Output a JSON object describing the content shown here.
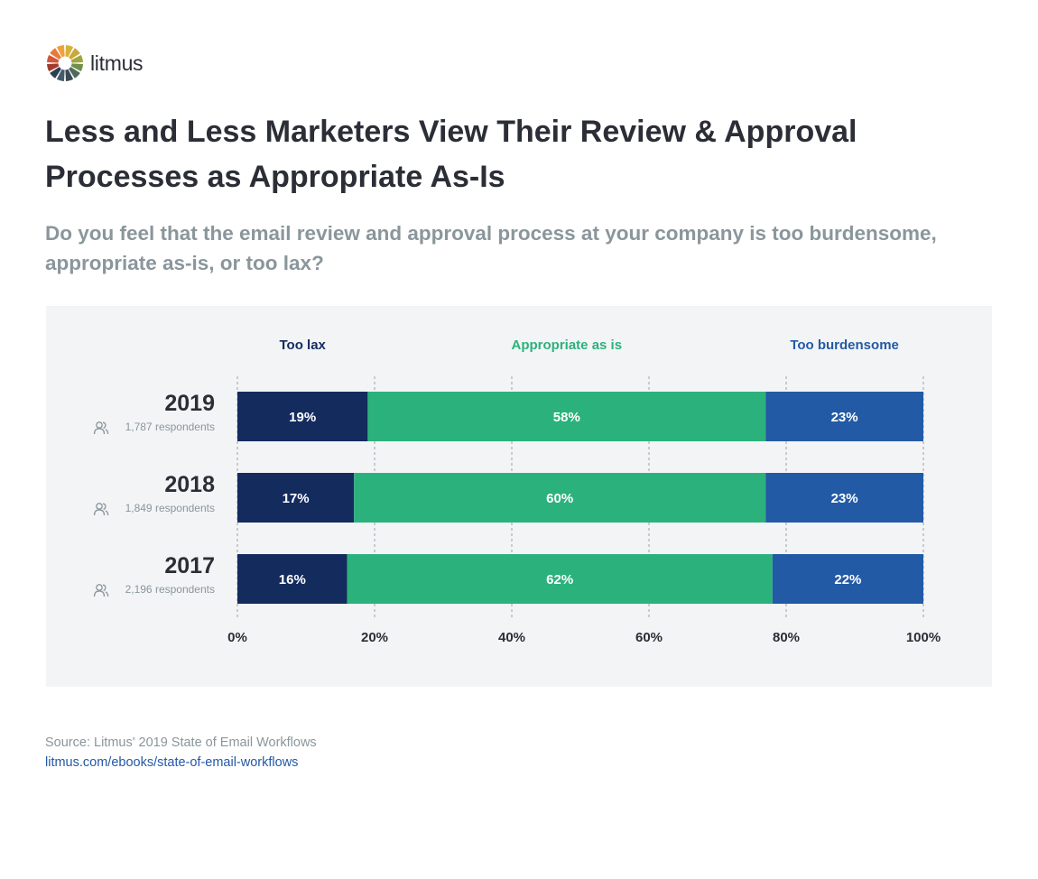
{
  "brand": {
    "name": "litmus",
    "logo_icon": "litmus-wheel-logo",
    "logo_colors": [
      "#d7b23a",
      "#c9a93c",
      "#9fa63e",
      "#6f8f4c",
      "#4e6b5c",
      "#3a4a54",
      "#455b6c",
      "#2c3e50",
      "#a33a2e",
      "#d1573a",
      "#e9793b",
      "#f0a13b"
    ]
  },
  "header": {
    "title": "Less and Less Marketers View Their Review & Approval Processes as Appropriate As-Is",
    "subtitle": "Do you feel that the email review and approval process at your company is too burdensome, appropriate as-is, or too lax?"
  },
  "chart_data": {
    "type": "bar",
    "orientation": "horizontal",
    "stacked": true,
    "categories": [
      "2019",
      "2018",
      "2017"
    ],
    "respondents": [
      "1,787 respondents",
      "1,849 respondents",
      "2,196 respondents"
    ],
    "respondent_icon": "people-icon",
    "series": [
      {
        "name": "Too lax",
        "color": "#142b5e",
        "values": [
          19,
          17,
          16
        ],
        "labels": [
          "19%",
          "17%",
          "16%"
        ]
      },
      {
        "name": "Appropriate as is",
        "color": "#2bb27c",
        "values": [
          58,
          60,
          62
        ],
        "labels": [
          "58%",
          "60%",
          "62%"
        ]
      },
      {
        "name": "Too burdensome",
        "color": "#235aa6",
        "values": [
          23,
          23,
          22
        ],
        "labels": [
          "23%",
          "23%",
          "22%"
        ]
      }
    ],
    "xlim": [
      0,
      100
    ],
    "xticks": [
      0,
      20,
      40,
      60,
      80,
      100
    ],
    "xtick_labels": [
      "0%",
      "20%",
      "40%",
      "60%",
      "80%",
      "100%"
    ],
    "grid": "vertical-dashed",
    "legend_position": "top"
  },
  "footer": {
    "source": "Source: Litmus' 2019 State of Email Workflows",
    "link": "litmus.com/ebooks/state-of-email-workflows"
  }
}
